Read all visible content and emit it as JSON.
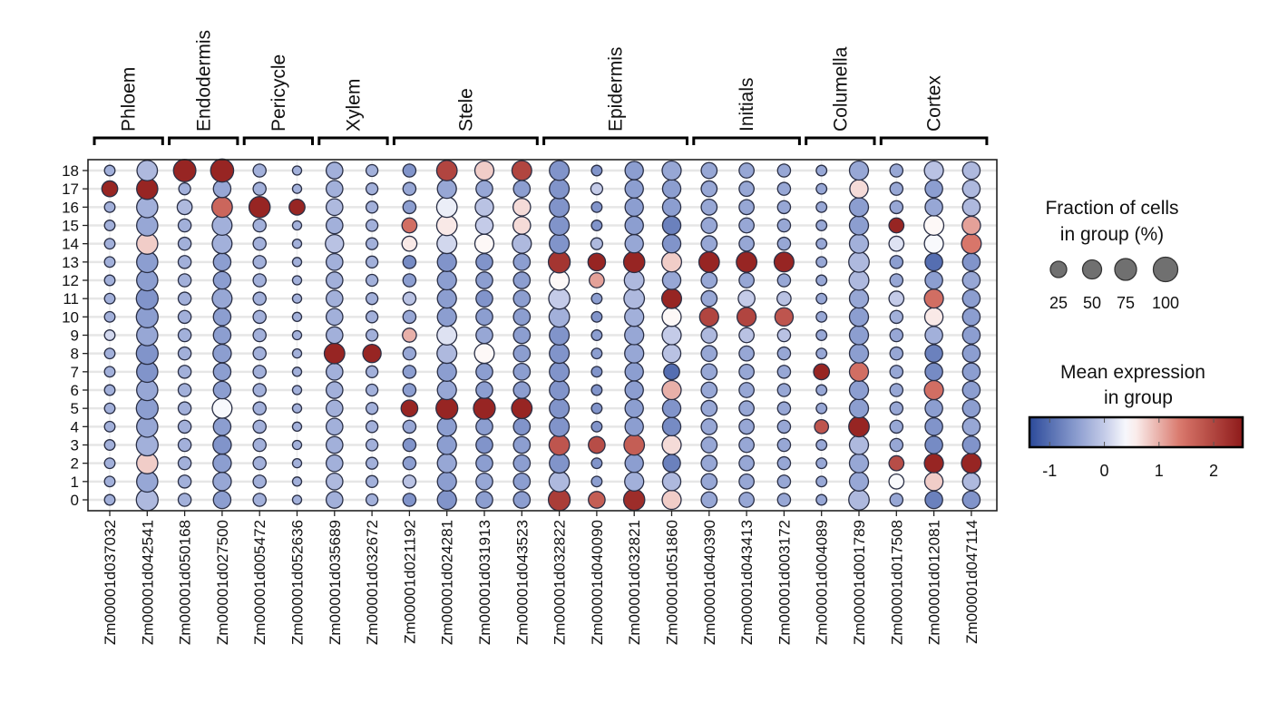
{
  "chart_data": {
    "type": "dotplot",
    "xlabel": "",
    "ylabel": "",
    "clusters": [
      "0",
      "1",
      "2",
      "3",
      "4",
      "5",
      "6",
      "7",
      "8",
      "9",
      "10",
      "11",
      "12",
      "13",
      "14",
      "15",
      "16",
      "17",
      "18"
    ],
    "groups": [
      {
        "label": "Phloem",
        "genes": [
          "Zm00001d037032",
          "Zm00001d042541"
        ]
      },
      {
        "label": "Endodermis",
        "genes": [
          "Zm00001d050168",
          "Zm00001d027500"
        ]
      },
      {
        "label": "Pericycle",
        "genes": [
          "Zm00001d005472",
          "Zm00001d052636"
        ]
      },
      {
        "label": "Xylem",
        "genes": [
          "Zm00001d035689",
          "Zm00001d032672"
        ]
      },
      {
        "label": "Stele",
        "genes": [
          "Zm00001d021192",
          "Zm00001d024281",
          "Zm00001d031913",
          "Zm00001d043523"
        ]
      },
      {
        "label": "Epidermis",
        "genes": [
          "Zm00001d032822",
          "Zm00001d040090",
          "Zm00001d032821",
          "Zm00001d051860"
        ]
      },
      {
        "label": "Initials",
        "genes": [
          "Zm00001d040390",
          "Zm00001d043413",
          "Zm00001d003172"
        ]
      },
      {
        "label": "Columella",
        "genes": [
          "Zm00001d004089",
          "Zm00001d001789"
        ]
      },
      {
        "label": "Cortex",
        "genes": [
          "Zm00001d017508",
          "Zm00001d012081",
          "Zm00001d047114"
        ]
      }
    ],
    "fraction_pct": [
      [
        20,
        20,
        20,
        20,
        20,
        20,
        20,
        20,
        20,
        20,
        20,
        20,
        20,
        20,
        20,
        20,
        20,
        45,
        20
      ],
      [
        85,
        80,
        80,
        85,
        80,
        85,
        80,
        80,
        85,
        80,
        85,
        85,
        80,
        80,
        80,
        80,
        80,
        80,
        75
      ],
      [
        30,
        30,
        30,
        30,
        30,
        30,
        30,
        30,
        30,
        30,
        30,
        30,
        30,
        30,
        30,
        30,
        40,
        25,
        90
      ],
      [
        55,
        60,
        60,
        60,
        55,
        70,
        55,
        55,
        60,
        55,
        55,
        70,
        55,
        55,
        70,
        70,
        75,
        55,
        95
      ],
      [
        30,
        30,
        30,
        30,
        30,
        30,
        30,
        30,
        30,
        30,
        30,
        30,
        30,
        30,
        30,
        30,
        80,
        30,
        30
      ],
      [
        15,
        15,
        15,
        15,
        15,
        15,
        15,
        15,
        15,
        15,
        15,
        15,
        15,
        15,
        15,
        15,
        45,
        15,
        15
      ],
      [
        50,
        50,
        50,
        50,
        50,
        50,
        50,
        50,
        75,
        50,
        50,
        50,
        50,
        50,
        60,
        50,
        50,
        50,
        50
      ],
      [
        25,
        25,
        25,
        25,
        25,
        25,
        25,
        25,
        60,
        25,
        25,
        25,
        25,
        25,
        25,
        25,
        25,
        25,
        25
      ],
      [
        30,
        30,
        30,
        30,
        30,
        50,
        30,
        30,
        30,
        35,
        30,
        30,
        30,
        30,
        40,
        40,
        30,
        30,
        30
      ],
      [
        65,
        65,
        65,
        65,
        65,
        85,
        65,
        65,
        70,
        70,
        65,
        65,
        65,
        65,
        70,
        75,
        75,
        65,
        75
      ],
      [
        50,
        50,
        50,
        50,
        50,
        85,
        50,
        50,
        70,
        50,
        50,
        50,
        50,
        50,
        65,
        55,
        60,
        50,
        65
      ],
      [
        50,
        50,
        50,
        50,
        50,
        75,
        50,
        50,
        50,
        50,
        50,
        50,
        50,
        50,
        65,
        55,
        55,
        50,
        70
      ],
      [
        85,
        75,
        70,
        75,
        70,
        70,
        70,
        70,
        70,
        70,
        75,
        80,
        70,
        85,
        70,
        70,
        70,
        70,
        70
      ],
      [
        50,
        20,
        20,
        50,
        20,
        20,
        20,
        20,
        20,
        20,
        20,
        20,
        40,
        55,
        25,
        20,
        20,
        25,
        20
      ],
      [
        80,
        65,
        60,
        75,
        60,
        60,
        60,
        60,
        65,
        65,
        65,
        75,
        70,
        80,
        60,
        60,
        60,
        60,
        60
      ],
      [
        65,
        60,
        55,
        65,
        60,
        60,
        65,
        45,
        60,
        65,
        65,
        70,
        60,
        70,
        60,
        60,
        60,
        60,
        65
      ],
      [
        45,
        45,
        45,
        45,
        45,
        45,
        45,
        45,
        45,
        45,
        65,
        45,
        45,
        75,
        45,
        45,
        45,
        45,
        45
      ],
      [
        40,
        40,
        40,
        40,
        40,
        40,
        40,
        40,
        40,
        40,
        65,
        50,
        40,
        75,
        40,
        40,
        40,
        40,
        40
      ],
      [
        30,
        30,
        30,
        30,
        30,
        30,
        30,
        30,
        30,
        30,
        60,
        35,
        30,
        70,
        30,
        30,
        30,
        30,
        30
      ],
      [
        20,
        20,
        20,
        20,
        35,
        20,
        20,
        45,
        20,
        20,
        20,
        20,
        20,
        20,
        20,
        20,
        20,
        20,
        20
      ],
      [
        75,
        65,
        65,
        65,
        75,
        65,
        65,
        65,
        65,
        65,
        65,
        65,
        70,
        75,
        65,
        65,
        65,
        60,
        65
      ],
      [
        30,
        40,
        40,
        30,
        30,
        30,
        30,
        30,
        30,
        30,
        30,
        40,
        30,
        30,
        40,
        40,
        30,
        30,
        30
      ],
      [
        55,
        60,
        65,
        55,
        55,
        55,
        65,
        55,
        55,
        55,
        60,
        65,
        55,
        55,
        65,
        70,
        55,
        55,
        65
      ],
      [
        55,
        55,
        70,
        55,
        55,
        55,
        55,
        55,
        55,
        55,
        55,
        55,
        55,
        55,
        70,
        60,
        55,
        55,
        55
      ]
    ],
    "mean_expression": [
      [
        -0.3,
        -0.3,
        -0.3,
        -0.3,
        -0.3,
        -0.3,
        -0.3,
        -0.3,
        -0.3,
        0.1,
        -0.3,
        -0.3,
        -0.3,
        -0.3,
        -0.3,
        -0.3,
        -0.3,
        2.4,
        -0.3
      ],
      [
        -0.2,
        -0.4,
        0.8,
        -0.3,
        -0.4,
        -0.5,
        -0.4,
        -0.6,
        -0.6,
        -0.4,
        -0.5,
        -0.6,
        -0.5,
        -0.5,
        0.8,
        -0.4,
        -0.3,
        2.4,
        -0.2
      ],
      [
        -0.3,
        -0.3,
        -0.3,
        -0.3,
        -0.3,
        -0.3,
        -0.3,
        -0.3,
        -0.3,
        -0.3,
        -0.3,
        -0.3,
        -0.3,
        -0.3,
        -0.3,
        -0.3,
        -0.2,
        -0.3,
        2.4
      ],
      [
        -0.5,
        -0.4,
        -0.5,
        -0.6,
        -0.5,
        0.4,
        -0.5,
        -0.5,
        -0.5,
        -0.5,
        -0.5,
        -0.4,
        -0.5,
        -0.5,
        -0.3,
        -0.3,
        1.6,
        -0.4,
        2.4
      ],
      [
        -0.3,
        -0.3,
        -0.3,
        -0.3,
        -0.3,
        -0.3,
        -0.3,
        -0.3,
        -0.3,
        -0.3,
        -0.3,
        -0.3,
        -0.3,
        -0.3,
        -0.3,
        -0.3,
        2.4,
        -0.3,
        -0.3
      ],
      [
        -0.3,
        -0.3,
        -0.3,
        -0.3,
        -0.3,
        -0.3,
        -0.3,
        -0.3,
        -0.3,
        -0.3,
        -0.3,
        -0.3,
        -0.3,
        -0.3,
        -0.3,
        -0.3,
        2.4,
        -0.3,
        -0.3
      ],
      [
        -0.3,
        -0.2,
        -0.3,
        -0.3,
        -0.3,
        -0.3,
        -0.3,
        -0.3,
        2.4,
        -0.3,
        -0.3,
        -0.3,
        -0.3,
        -0.3,
        -0.1,
        -0.3,
        -0.2,
        -0.3,
        -0.3
      ],
      [
        -0.3,
        -0.3,
        -0.3,
        -0.3,
        -0.3,
        -0.3,
        -0.3,
        -0.3,
        2.4,
        -0.3,
        -0.3,
        -0.3,
        -0.3,
        -0.3,
        -0.3,
        -0.3,
        -0.3,
        -0.3,
        -0.3
      ],
      [
        -0.6,
        -0.1,
        -0.5,
        -0.6,
        -0.4,
        2.4,
        -0.5,
        -0.5,
        -0.4,
        1.0,
        -0.4,
        -0.1,
        -0.5,
        -0.7,
        0.6,
        1.5,
        -0.5,
        -0.4,
        -0.6
      ],
      [
        -0.6,
        -0.5,
        -0.4,
        -0.5,
        -0.5,
        2.4,
        -0.4,
        -0.5,
        -0.2,
        0.2,
        -0.5,
        -0.5,
        -0.5,
        -0.6,
        0.1,
        0.6,
        0.3,
        -0.4,
        2.0
      ],
      [
        -0.5,
        -0.4,
        -0.5,
        -0.6,
        -0.5,
        2.4,
        -0.5,
        -0.5,
        0.5,
        -0.4,
        -0.5,
        -0.6,
        -0.5,
        -0.6,
        0.5,
        0.0,
        -0.1,
        -0.4,
        0.8
      ],
      [
        -0.5,
        -0.5,
        -0.5,
        -0.5,
        -0.6,
        2.4,
        -0.5,
        -0.5,
        -0.5,
        -0.5,
        -0.5,
        -0.5,
        -0.5,
        -0.5,
        -0.2,
        0.7,
        0.7,
        -0.5,
        2.0
      ],
      [
        2.1,
        -0.2,
        -0.6,
        1.8,
        -0.6,
        -0.6,
        -0.6,
        -0.6,
        -0.6,
        -0.6,
        -0.3,
        0.0,
        0.5,
        2.2,
        -0.6,
        -0.6,
        -0.6,
        -0.6,
        -0.6
      ],
      [
        1.7,
        -0.5,
        -0.6,
        1.9,
        -0.6,
        -0.6,
        -0.6,
        -0.6,
        -0.5,
        -0.5,
        -0.6,
        -0.5,
        1.1,
        2.4,
        -0.2,
        -0.6,
        -0.6,
        0.0,
        -0.6
      ],
      [
        2.3,
        -0.3,
        -0.5,
        1.7,
        -0.5,
        -0.5,
        -0.5,
        -0.5,
        -0.4,
        -0.4,
        -0.3,
        -0.2,
        -0.2,
        2.4,
        -0.4,
        -0.5,
        -0.5,
        -0.5,
        -0.5
      ],
      [
        0.8,
        -0.2,
        -0.8,
        0.7,
        -0.7,
        -0.6,
        1.0,
        -1.0,
        -0.1,
        0.0,
        0.5,
        2.4,
        -0.4,
        0.8,
        -0.6,
        -0.8,
        -0.5,
        -0.5,
        -0.4
      ],
      [
        -0.4,
        -0.4,
        -0.4,
        -0.4,
        -0.4,
        -0.4,
        -0.4,
        -0.4,
        -0.4,
        -0.2,
        2.0,
        -0.4,
        -0.4,
        2.4,
        -0.4,
        -0.4,
        -0.4,
        -0.4,
        -0.4
      ],
      [
        -0.4,
        -0.4,
        -0.4,
        -0.4,
        -0.4,
        -0.4,
        -0.4,
        -0.4,
        -0.4,
        -0.1,
        2.0,
        0.0,
        -0.4,
        2.4,
        -0.4,
        -0.4,
        -0.4,
        -0.4,
        -0.4
      ],
      [
        -0.4,
        -0.4,
        -0.4,
        -0.4,
        -0.4,
        -0.4,
        -0.4,
        -0.4,
        -0.4,
        -0.1,
        1.8,
        -0.1,
        -0.4,
        2.4,
        -0.4,
        -0.4,
        -0.4,
        -0.4,
        -0.4
      ],
      [
        -0.4,
        -0.4,
        -0.4,
        -0.4,
        1.8,
        -0.4,
        -0.4,
        2.4,
        -0.4,
        -0.4,
        -0.4,
        -0.4,
        -0.4,
        -0.4,
        -0.4,
        -0.4,
        -0.4,
        -0.4,
        -0.4
      ],
      [
        -0.2,
        -0.4,
        -0.4,
        -0.2,
        2.4,
        -0.5,
        -0.5,
        1.5,
        -0.5,
        -0.5,
        -0.5,
        -0.4,
        -0.2,
        -0.2,
        -0.3,
        -0.5,
        -0.5,
        0.7,
        -0.4
      ],
      [
        -0.4,
        0.4,
        1.9,
        -0.4,
        -0.4,
        -0.4,
        -0.4,
        -0.4,
        -0.4,
        -0.4,
        -0.3,
        0.0,
        -0.4,
        -0.5,
        0.2,
        2.4,
        -0.4,
        -0.4,
        -0.4
      ],
      [
        -0.8,
        0.8,
        2.4,
        -0.7,
        -0.6,
        -0.5,
        1.5,
        -0.7,
        -0.8,
        -0.3,
        0.6,
        1.5,
        -0.5,
        -1.0,
        0.4,
        0.5,
        -0.4,
        -0.5,
        -0.1
      ],
      [
        -0.6,
        -0.2,
        2.4,
        -0.6,
        -0.4,
        -0.5,
        -0.5,
        -0.5,
        -0.5,
        -0.5,
        -0.5,
        -0.5,
        -0.4,
        -0.6,
        1.4,
        1.1,
        -0.2,
        -0.2,
        -0.2
      ]
    ],
    "grid": true,
    "size_legend": {
      "title_line1": "Fraction of cells",
      "title_line2": "in group (%)",
      "values": [
        25,
        50,
        75,
        100
      ],
      "labels": [
        "25",
        "50",
        "75",
        "100"
      ]
    },
    "color_legend": {
      "title_line1": "Mean expression",
      "title_line2": "in group",
      "range": [
        -1.37,
        2.53
      ],
      "ticks": [
        -1,
        0,
        1,
        2
      ],
      "tick_labels": [
        "-1",
        "0",
        "1",
        "2"
      ],
      "colormap": "blue-white-red",
      "colors": {
        "low": "#2c4a9a",
        "mid": "#ffffff",
        "high": "#8e1a1a"
      }
    },
    "legend_position": "right"
  }
}
